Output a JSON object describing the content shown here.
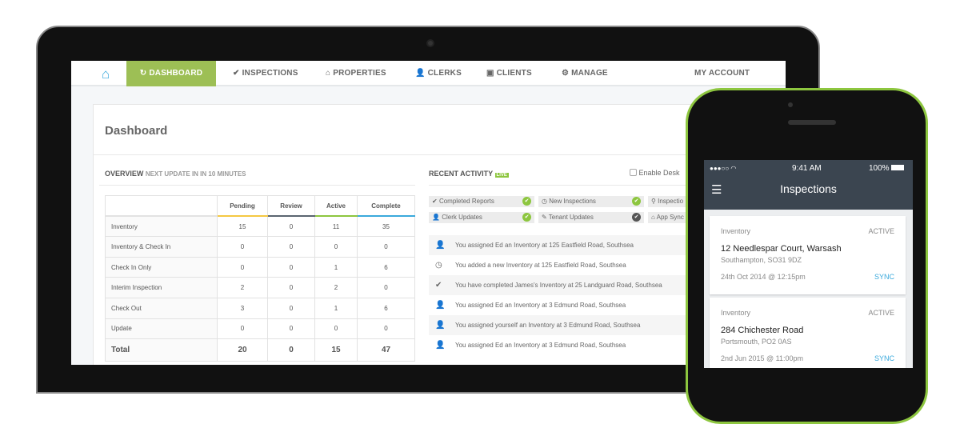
{
  "nav": {
    "items": [
      {
        "label": "DASHBOARD",
        "icon": "refresh-icon",
        "glyph": "↻",
        "active": true
      },
      {
        "label": "INSPECTIONS",
        "icon": "check-icon",
        "glyph": "✔"
      },
      {
        "label": "PROPERTIES",
        "icon": "home-icon",
        "glyph": "⌂"
      },
      {
        "label": "CLERKS",
        "icon": "users-icon",
        "glyph": "👤"
      },
      {
        "label": "CLIENTS",
        "icon": "briefcase-icon",
        "glyph": "▣"
      },
      {
        "label": "MANAGE",
        "icon": "gear-icon",
        "glyph": "⚙"
      }
    ],
    "account": "MY ACCOUNT",
    "accent": "#9dbf55"
  },
  "page": {
    "title": "Dashboard"
  },
  "overview": {
    "heading": "OVERVIEW",
    "subheading": "NEXT UPDATE IN IN 10 MINUTES",
    "columns": [
      {
        "label": "Pending",
        "color": "#f5c842"
      },
      {
        "label": "Review",
        "color": "#5a6570"
      },
      {
        "label": "Active",
        "color": "#8dc63f"
      },
      {
        "label": "Complete",
        "color": "#3aa9dc"
      }
    ],
    "rows": [
      [
        "Inventory",
        "15",
        "0",
        "11",
        "35"
      ],
      [
        "Inventory & Check In",
        "0",
        "0",
        "0",
        "0"
      ],
      [
        "Check In Only",
        "0",
        "0",
        "1",
        "6"
      ],
      [
        "Interim Inspection",
        "2",
        "0",
        "2",
        "0"
      ],
      [
        "Check Out",
        "3",
        "0",
        "1",
        "6"
      ],
      [
        "Update",
        "0",
        "0",
        "0",
        "0"
      ]
    ],
    "total": [
      "Total",
      "20",
      "0",
      "15",
      "47"
    ]
  },
  "activity": {
    "heading": "RECENT ACTIVITY",
    "live": "LIVE",
    "desktop_label": "Enable Desk",
    "filters": [
      {
        "label": "Completed Reports",
        "glyph": "✔",
        "on": true
      },
      {
        "label": "New Inspections",
        "glyph": "◷",
        "on": true
      },
      {
        "label": "Inspectio",
        "glyph": "⚲"
      },
      {
        "label": "Clerk Updates",
        "glyph": "👤",
        "on": true
      },
      {
        "label": "Tenant Updates",
        "glyph": "✎",
        "on": false
      },
      {
        "label": "App Sync",
        "glyph": "⌂"
      }
    ],
    "items": [
      {
        "icon": "user-icon",
        "glyph": "👤",
        "text": "You assigned Ed an Inventory at 125 Eastfield Road, Southsea"
      },
      {
        "icon": "clock-icon",
        "glyph": "◷",
        "text": "You added a new Inventory at 125 Eastfield Road, Southsea"
      },
      {
        "icon": "check-icon",
        "glyph": "✔",
        "text": "You have completed James's Inventory at 25 Landguard Road, Southsea"
      },
      {
        "icon": "user-icon",
        "glyph": "👤",
        "text": "You assigned Ed an Inventory at 3 Edmund Road, Southsea"
      },
      {
        "icon": "user-icon",
        "glyph": "👤",
        "text": "You assigned yourself an Inventory at 3 Edmund Road, Southsea"
      },
      {
        "icon": "user-icon",
        "glyph": "👤",
        "text": "You assigned Ed an Inventory at 3 Edmund Road, Southsea"
      }
    ]
  },
  "phone": {
    "signal": "●●●○○",
    "time": "9:41 AM",
    "battery": "100%",
    "title": "Inspections",
    "cards": [
      {
        "type": "Inventory",
        "status": "ACTIVE",
        "address": "12 Needlespar Court, Warsash",
        "area": "Southampton, SO31 9DZ",
        "date": "24th Oct 2014 @ 12:15pm",
        "action": "SYNC"
      },
      {
        "type": "Inventory",
        "status": "ACTIVE",
        "address": "284 Chichester Road",
        "area": "Portsmouth, PO2 0AS",
        "date": "2nd Jun 2015 @ 11:00pm",
        "action": "SYNC"
      }
    ]
  }
}
